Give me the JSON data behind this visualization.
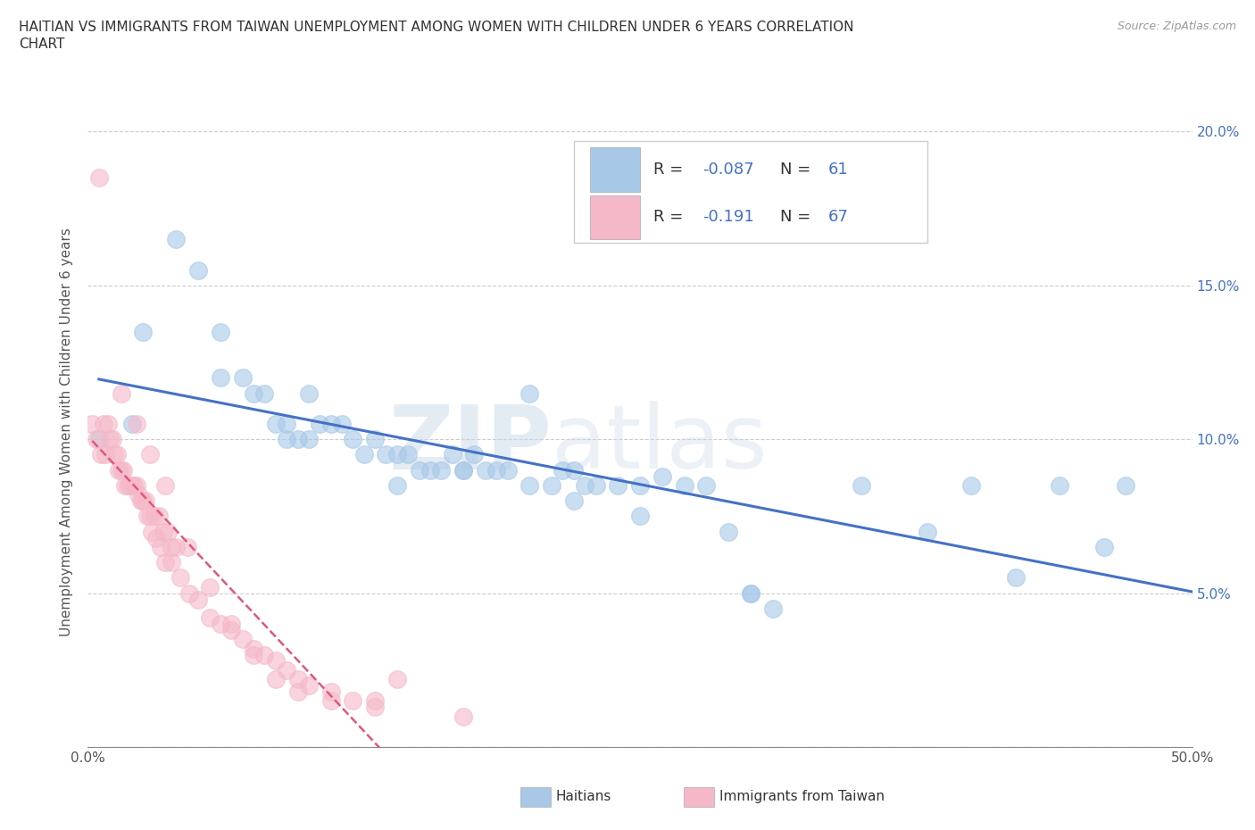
{
  "title_line1": "HAITIAN VS IMMIGRANTS FROM TAIWAN UNEMPLOYMENT AMONG WOMEN WITH CHILDREN UNDER 6 YEARS CORRELATION",
  "title_line2": "CHART",
  "source_text": "Source: ZipAtlas.com",
  "ylabel": "Unemployment Among Women with Children Under 6 years",
  "xlim": [
    0.0,
    0.5
  ],
  "ylim": [
    0.0,
    0.205
  ],
  "xticks": [
    0.0,
    0.1,
    0.2,
    0.3,
    0.4,
    0.5
  ],
  "xticklabels": [
    "0.0%",
    "",
    "",
    "",
    "",
    "50.0%"
  ],
  "yticks": [
    0.0,
    0.05,
    0.1,
    0.15,
    0.2
  ],
  "yticklabels": [
    "",
    "5.0%",
    "10.0%",
    "15.0%",
    "20.0%"
  ],
  "legend_labels": [
    "Haitians",
    "Immigrants from Taiwan"
  ],
  "legend_R": [
    -0.087,
    -0.191
  ],
  "legend_N": [
    61,
    67
  ],
  "blue_color": "#a8c8e8",
  "pink_color": "#f5b8c8",
  "blue_line_color": "#4472c4",
  "pink_line_color": "#e05878",
  "watermark_zip": "ZIP",
  "watermark_atlas": "atlas",
  "blue_scatter_x": [
    0.02,
    0.025,
    0.04,
    0.05,
    0.06,
    0.07,
    0.075,
    0.08,
    0.085,
    0.09,
    0.095,
    0.1,
    0.105,
    0.11,
    0.115,
    0.12,
    0.125,
    0.13,
    0.135,
    0.14,
    0.145,
    0.15,
    0.155,
    0.16,
    0.165,
    0.17,
    0.175,
    0.18,
    0.185,
    0.19,
    0.2,
    0.21,
    0.215,
    0.22,
    0.225,
    0.23,
    0.24,
    0.25,
    0.26,
    0.27,
    0.28,
    0.29,
    0.3,
    0.31,
    0.35,
    0.38,
    0.4,
    0.42,
    0.44,
    0.46,
    0.005,
    0.06,
    0.09,
    0.1,
    0.14,
    0.17,
    0.2,
    0.22,
    0.25,
    0.3,
    0.47
  ],
  "blue_scatter_y": [
    0.105,
    0.135,
    0.165,
    0.155,
    0.135,
    0.12,
    0.115,
    0.115,
    0.105,
    0.105,
    0.1,
    0.1,
    0.105,
    0.105,
    0.105,
    0.1,
    0.095,
    0.1,
    0.095,
    0.095,
    0.095,
    0.09,
    0.09,
    0.09,
    0.095,
    0.09,
    0.095,
    0.09,
    0.09,
    0.09,
    0.085,
    0.085,
    0.09,
    0.09,
    0.085,
    0.085,
    0.085,
    0.085,
    0.088,
    0.085,
    0.085,
    0.07,
    0.05,
    0.045,
    0.085,
    0.07,
    0.085,
    0.055,
    0.085,
    0.065,
    0.1,
    0.12,
    0.1,
    0.115,
    0.085,
    0.09,
    0.115,
    0.08,
    0.075,
    0.05,
    0.085
  ],
  "pink_scatter_x": [
    0.002,
    0.004,
    0.006,
    0.008,
    0.01,
    0.012,
    0.014,
    0.016,
    0.018,
    0.02,
    0.022,
    0.024,
    0.026,
    0.028,
    0.03,
    0.032,
    0.034,
    0.036,
    0.038,
    0.04,
    0.005,
    0.007,
    0.009,
    0.011,
    0.013,
    0.015,
    0.017,
    0.019,
    0.021,
    0.023,
    0.025,
    0.027,
    0.029,
    0.031,
    0.033,
    0.035,
    0.038,
    0.042,
    0.046,
    0.05,
    0.055,
    0.06,
    0.065,
    0.07,
    0.075,
    0.08,
    0.085,
    0.09,
    0.095,
    0.1,
    0.11,
    0.12,
    0.13,
    0.14,
    0.015,
    0.022,
    0.028,
    0.035,
    0.045,
    0.055,
    0.065,
    0.075,
    0.085,
    0.095,
    0.11,
    0.13,
    0.17
  ],
  "pink_scatter_y": [
    0.105,
    0.1,
    0.095,
    0.095,
    0.1,
    0.095,
    0.09,
    0.09,
    0.085,
    0.085,
    0.085,
    0.08,
    0.08,
    0.075,
    0.075,
    0.075,
    0.07,
    0.07,
    0.065,
    0.065,
    0.185,
    0.105,
    0.105,
    0.1,
    0.095,
    0.09,
    0.085,
    0.085,
    0.085,
    0.082,
    0.08,
    0.075,
    0.07,
    0.068,
    0.065,
    0.06,
    0.06,
    0.055,
    0.05,
    0.048,
    0.042,
    0.04,
    0.038,
    0.035,
    0.032,
    0.03,
    0.028,
    0.025,
    0.022,
    0.02,
    0.018,
    0.015,
    0.015,
    0.022,
    0.115,
    0.105,
    0.095,
    0.085,
    0.065,
    0.052,
    0.04,
    0.03,
    0.022,
    0.018,
    0.015,
    0.013,
    0.01
  ]
}
